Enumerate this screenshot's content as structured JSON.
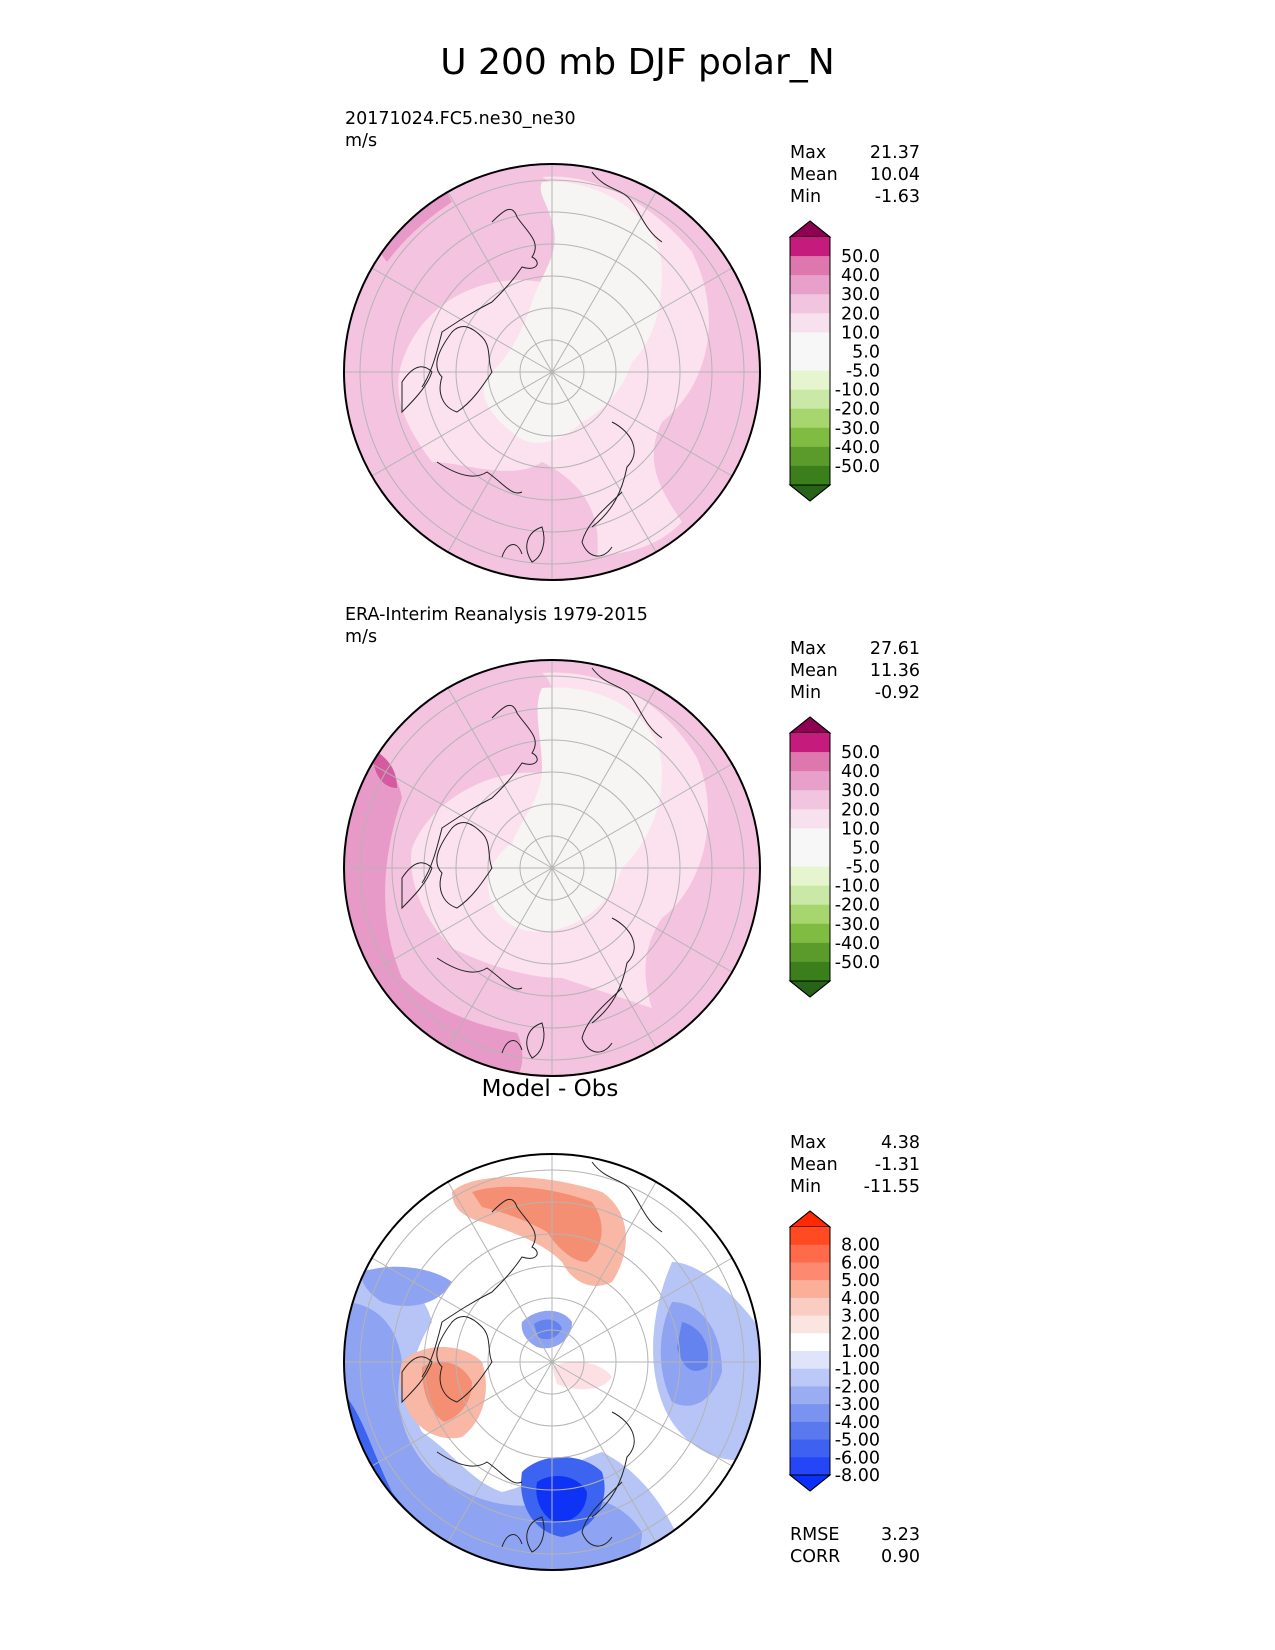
{
  "figure": {
    "title": "U 200 mb DJF polar_N"
  },
  "colors": {
    "fields": [
      "#f4c3e0",
      "#fbe2ee",
      "#f6f5f3",
      "#e79ac7",
      "#d55aa0",
      "#c51c7e",
      "#fde0e4",
      "#f9b8a5",
      "#f58f74",
      "#dfe6fb",
      "#b7c4f6",
      "#8ea3f1",
      "#6583ef",
      "#3d64f0",
      "#0f33f4"
    ],
    "coast": "#222222",
    "graticule": "#b4b4b4"
  },
  "panels": [
    {
      "name": "test",
      "title_line1": "20171024.FC5.ne30_ne30",
      "title_line2": "m/s",
      "stats": [
        {
          "label": "Max",
          "value": "21.37"
        },
        {
          "label": "Mean",
          "value": "10.04"
        },
        {
          "label": "Min",
          "value": "-1.63"
        }
      ],
      "colorbar": {
        "upper_color": "#8e0152",
        "lower_color": "#276419",
        "colors": [
          "#c51b7d",
          "#de77ae",
          "#e89fca",
          "#f1c5e0",
          "#f8e1ee",
          "#f7f7f7",
          "#f7f7f7",
          "#e6f5d0",
          "#cbe9a6",
          "#a7d56e",
          "#7fbc41",
          "#5a9b2c",
          "#3b7e1c"
        ],
        "labels": [
          "50.0",
          "40.0",
          "30.0",
          "20.0",
          "10.0",
          "5.0",
          "-5.0",
          "-10.0",
          "-20.0",
          "-30.0",
          "-40.0",
          "-50.0"
        ]
      }
    },
    {
      "name": "reference",
      "title_line1": "ERA-Interim Reanalysis 1979-2015",
      "title_line2": "m/s",
      "stats": [
        {
          "label": "Max",
          "value": "27.61"
        },
        {
          "label": "Mean",
          "value": "11.36"
        },
        {
          "label": "Min",
          "value": "-0.92"
        }
      ],
      "colorbar": {
        "upper_color": "#8e0152",
        "lower_color": "#276419",
        "colors": [
          "#c51b7d",
          "#de77ae",
          "#e89fca",
          "#f1c5e0",
          "#f8e1ee",
          "#f7f7f7",
          "#f7f7f7",
          "#e6f5d0",
          "#cbe9a6",
          "#a7d56e",
          "#7fbc41",
          "#5a9b2c",
          "#3b7e1c"
        ],
        "labels": [
          "50.0",
          "40.0",
          "30.0",
          "20.0",
          "10.0",
          "5.0",
          "-5.0",
          "-10.0",
          "-20.0",
          "-30.0",
          "-40.0",
          "-50.0"
        ]
      }
    },
    {
      "name": "difference",
      "title": "Model - Obs",
      "stats": [
        {
          "label": "Max",
          "value": "4.38"
        },
        {
          "label": "Mean",
          "value": "-1.31"
        },
        {
          "label": "Min",
          "value": "-11.55"
        }
      ],
      "metrics": [
        {
          "label": "RMSE",
          "value": "3.23"
        },
        {
          "label": "CORR",
          "value": "0.90"
        }
      ],
      "colorbar": {
        "upper_color": "#ff2a00",
        "lower_color": "#0a30ff",
        "colors": [
          "#ff4a22",
          "#fe6a4a",
          "#fd8a70",
          "#fbae98",
          "#f9cdc1",
          "#fbe5e1",
          "#ffffff",
          "#dfe4fb",
          "#bcc8f7",
          "#9aadf3",
          "#7a93f0",
          "#5a79ef",
          "#3f61f2",
          "#2546f6"
        ],
        "labels": [
          "8.00",
          "6.00",
          "5.00",
          "4.00",
          "3.00",
          "2.00",
          "1.00",
          "-1.00",
          "-2.00",
          "-3.00",
          "-4.00",
          "-5.00",
          "-6.00",
          "-8.00"
        ]
      }
    }
  ]
}
